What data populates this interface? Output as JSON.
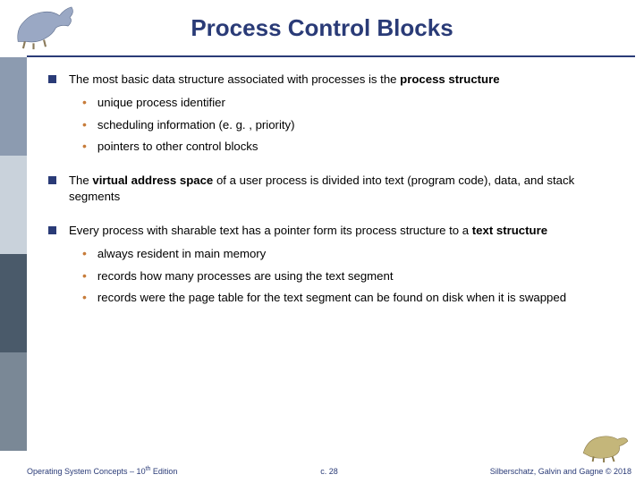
{
  "colors": {
    "accent": "#2a3b77",
    "sub_bullet": "#c77c3a",
    "sidebar": [
      "#8c9bb0",
      "#c9d2db",
      "#4a5a6a",
      "#7a8896"
    ]
  },
  "title": "Process Control Blocks",
  "bullets": [
    {
      "text_html": "The most basic data structure associated with processes is the <b>process structure</b>",
      "subs": [
        "unique process identifier",
        "scheduling information (e. g. , priority)",
        "pointers to other control blocks"
      ]
    },
    {
      "text_html": "The <b>virtual address space</b> of a user process is divided into text (program code), data, and stack segments",
      "subs": []
    },
    {
      "text_html": "Every process with sharable text has a pointer form its process structure to a <b>text structure</b>",
      "subs": [
        "always resident in main memory",
        "records how many processes are using the text segment",
        "records were the page table for the text segment can be found on disk when it is swapped"
      ]
    }
  ],
  "footer": {
    "left_html": "Operating System Concepts – 10<span class=\"sup\">th</span> Edition",
    "center": "c. 28",
    "right": "Silberschatz, Galvin and Gagne © 2018"
  }
}
